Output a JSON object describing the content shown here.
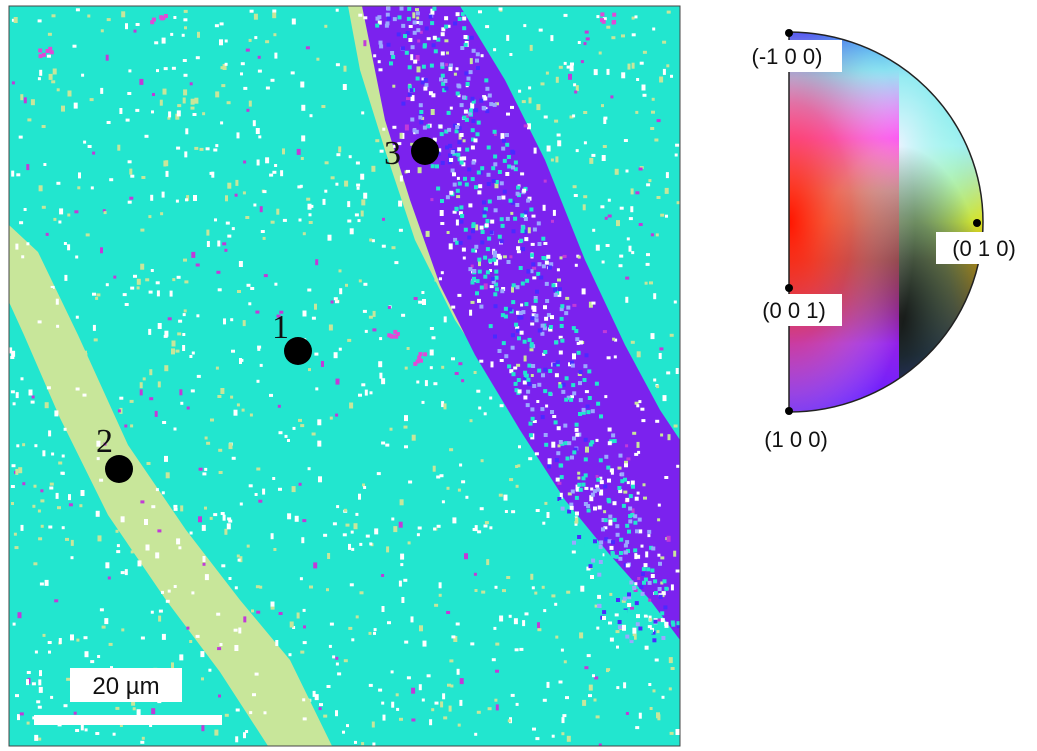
{
  "orientation_map": {
    "colors": {
      "matrix": "#22e6cf",
      "band_light": "#c8e69a",
      "band_violet": "#7b22ee",
      "speck_white": "#ffffff",
      "speck_magenta": "#c23ad8",
      "speck_pink": "#e04ad6",
      "marker": "#000000"
    },
    "points": [
      {
        "label": "1"
      },
      {
        "label": "2"
      },
      {
        "label": "3"
      }
    ],
    "scale_bar": {
      "label": "20 µm"
    }
  },
  "ipf_key": {
    "labels": [
      {
        "id": "m100",
        "text": "(-1 0 0)"
      },
      {
        "id": "010",
        "text": "(0 1 0)"
      },
      {
        "id": "001",
        "text": "(0 0 1)"
      },
      {
        "id": "100",
        "text": "(1 0 0)"
      }
    ]
  }
}
